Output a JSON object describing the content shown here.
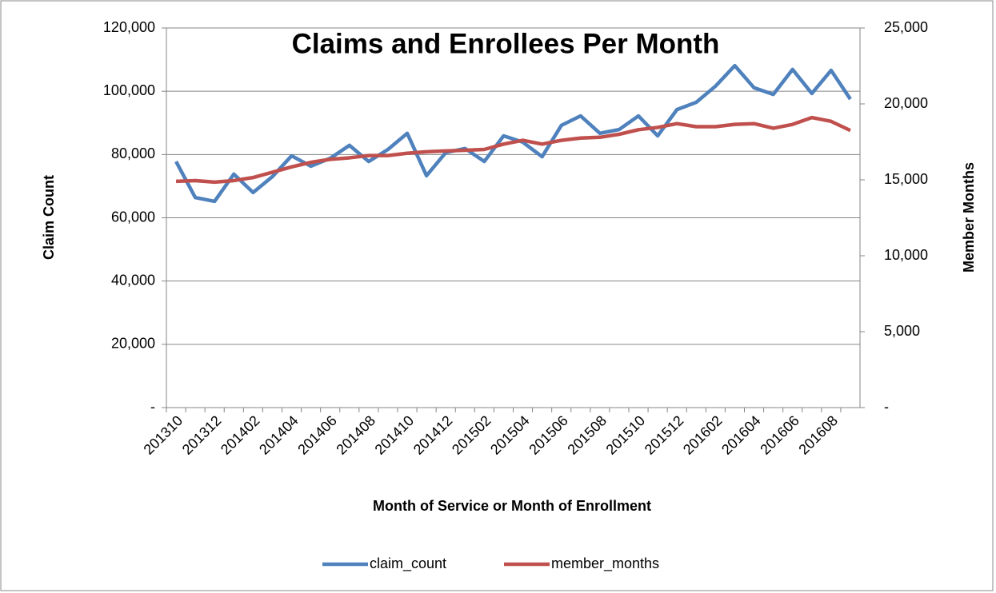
{
  "chart_data": {
    "type": "line",
    "title": "Claims and Enrollees Per Month",
    "x_label": "Month of Service or Month of Enrollment",
    "y_label": "Claim Count",
    "y2_label": "Member Months",
    "categories": [
      "201310",
      null,
      "201312",
      null,
      "201402",
      null,
      "201404",
      null,
      "201406",
      null,
      "201408",
      null,
      "201410",
      null,
      "201412",
      null,
      "201502",
      null,
      "201504",
      null,
      "201506",
      null,
      "201508",
      null,
      "201510",
      null,
      "201512",
      null,
      "201602",
      null,
      "201604",
      null,
      "201606",
      null,
      "201608",
      null
    ],
    "series": [
      {
        "name": "claim_count",
        "color": "#4f81bd",
        "values": [
          77800,
          66400,
          65200,
          73800,
          68000,
          73000,
          79600,
          76300,
          78800,
          82900,
          77800,
          81600,
          86700,
          73300,
          80600,
          81900,
          77800,
          85900,
          83900,
          79300,
          89200,
          92200,
          86700,
          87900,
          92200,
          85900,
          94200,
          96500,
          101600,
          108100,
          101100,
          99000,
          106900,
          99300,
          106600,
          97500
        ]
      },
      {
        "name": "member_months",
        "color": "#c0504d",
        "axis": "y2",
        "values": [
          14900,
          14950,
          14850,
          14950,
          15150,
          15500,
          15850,
          16150,
          16350,
          16450,
          16600,
          16600,
          16750,
          16850,
          16900,
          16950,
          17000,
          17350,
          17600,
          17350,
          17600,
          17750,
          17800,
          18000,
          18300,
          18450,
          18700,
          18500,
          18500,
          18650,
          18700,
          18400,
          18650,
          19100,
          18850,
          18250
        ]
      }
    ],
    "ylim": [
      0,
      120000
    ],
    "yticks": [
      {
        "value": 0,
        "label": "-"
      },
      {
        "value": 20000,
        "label": "20,000"
      },
      {
        "value": 40000,
        "label": "40,000"
      },
      {
        "value": 60000,
        "label": "60,000"
      },
      {
        "value": 80000,
        "label": "80,000"
      },
      {
        "value": 100000,
        "label": "100,000"
      },
      {
        "value": 120000,
        "label": "120,000"
      }
    ],
    "y2lim": [
      0,
      25000
    ],
    "y2ticks": [
      {
        "value": 0,
        "label": "-"
      },
      {
        "value": 5000,
        "label": "5,000"
      },
      {
        "value": 10000,
        "label": "10,000"
      },
      {
        "value": 15000,
        "label": "15,000"
      },
      {
        "value": 20000,
        "label": "20,000"
      },
      {
        "value": 25000,
        "label": "25,000"
      }
    ],
    "grid": true,
    "legend": "bottom"
  }
}
